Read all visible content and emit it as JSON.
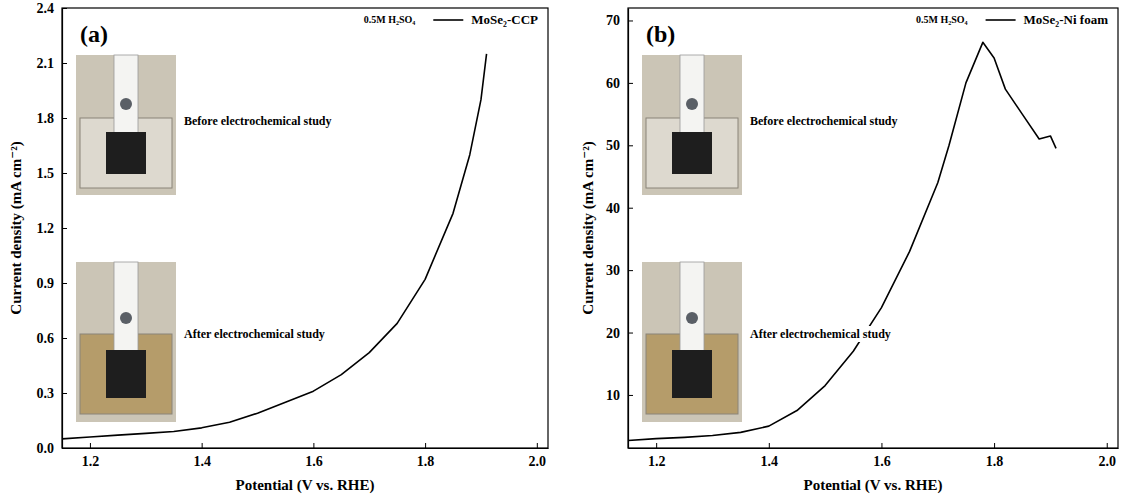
{
  "chart_data": [
    {
      "type": "line",
      "title": "(a)",
      "x_label": "Potential (V vs. RHE)",
      "y_label": "Current density (mA cm⁻²)",
      "annotations": [
        "0.5M H₂SO₄",
        "Before electrochemical study",
        "After electrochemical study"
      ],
      "x": [
        1.15,
        1.2,
        1.25,
        1.3,
        1.35,
        1.4,
        1.45,
        1.5,
        1.55,
        1.6,
        1.65,
        1.7,
        1.75,
        1.8,
        1.85,
        1.88,
        1.9,
        1.91
      ],
      "series": [
        {
          "name": "MoSe₂-CCP",
          "color": "#000000",
          "values": [
            0.05,
            0.06,
            0.07,
            0.08,
            0.09,
            0.11,
            0.14,
            0.19,
            0.25,
            0.31,
            0.4,
            0.52,
            0.68,
            0.92,
            1.28,
            1.6,
            1.9,
            2.15
          ]
        }
      ],
      "xlim": [
        1.15,
        2.02
      ],
      "ylim": [
        0,
        2.4
      ],
      "xticks": [
        1.2,
        1.4,
        1.6,
        1.8,
        {
          "value": 2,
          "label": "2.0"
        }
      ],
      "yticks": [
        {
          "value": 0,
          "label": "0.0"
        },
        0.3,
        0.6,
        0.9,
        1.2,
        1.5,
        1.8,
        2.1,
        2.4
      ],
      "legend": "upper right"
    },
    {
      "type": "line",
      "title": "(b)",
      "x_label": "Potential (V vs. RHE)",
      "y_label": "Current density (mA cm⁻²)",
      "annotations": [
        "0.5M H₂SO₄",
        "Before electrochemical study",
        "After electrochemical study"
      ],
      "x": [
        1.15,
        1.2,
        1.25,
        1.3,
        1.35,
        1.4,
        1.45,
        1.5,
        1.55,
        1.6,
        1.65,
        1.7,
        1.72,
        1.75,
        1.78,
        1.8,
        1.82,
        1.85,
        1.88,
        1.9,
        1.91
      ],
      "series": [
        {
          "name": "MoSe₂-Ni foam",
          "color": "#000000",
          "values": [
            2.7,
            3.0,
            3.2,
            3.5,
            4.0,
            5.0,
            7.5,
            11.5,
            17,
            24,
            33,
            44,
            50,
            60,
            66.5,
            64,
            59,
            55,
            51,
            51.5,
            49.5
          ]
        }
      ],
      "xlim": [
        1.15,
        2.02
      ],
      "ylim": [
        1.5,
        72
      ],
      "xticks": [
        1.2,
        1.4,
        1.6,
        1.8,
        {
          "value": 2,
          "label": "2.0"
        }
      ],
      "yticks": [
        10,
        20,
        30,
        40,
        50,
        60,
        70
      ],
      "legend": "upper right"
    }
  ]
}
